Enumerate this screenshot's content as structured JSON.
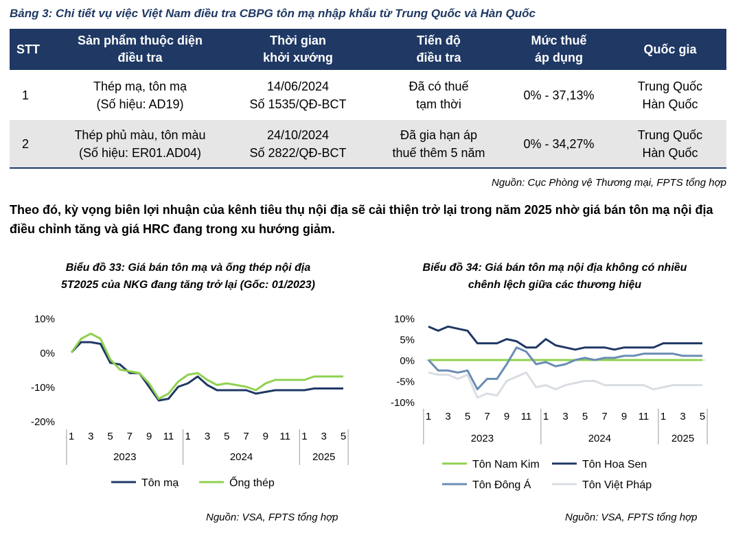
{
  "table": {
    "caption": "Bảng 3: Chi tiết vụ việc Việt Nam điều tra CBPG tôn mạ nhập khẩu từ Trung Quốc và Hàn Quốc",
    "headers": [
      {
        "line1": "STT",
        "line2": ""
      },
      {
        "line1": "Sản phẩm thuộc diện",
        "line2": "điều tra"
      },
      {
        "line1": "Thời gian",
        "line2": "khởi xướng"
      },
      {
        "line1": "Tiến độ",
        "line2": "điều tra"
      },
      {
        "line1": "Mức thuế",
        "line2": "áp dụng"
      },
      {
        "line1": "Quốc gia",
        "line2": ""
      }
    ],
    "rows": [
      {
        "stt": "1",
        "product_1": "Thép mạ, tôn mạ",
        "product_2": "(Số hiệu: AD19)",
        "date_1": "14/06/2024",
        "date_2": "Số 1535/QĐ-BCT",
        "progress_1": "Đã có thuế",
        "progress_2": "tạm thời",
        "tax": "0% - 37,13%",
        "country_1": "Trung Quốc",
        "country_2": "Hàn Quốc"
      },
      {
        "stt": "2",
        "product_1": "Thép phủ màu, tôn màu",
        "product_2": "(Số hiệu: ER01.AD04)",
        "date_1": "24/10/2024",
        "date_2": "Số 2822/QĐ-BCT",
        "progress_1": "Đã gia hạn áp",
        "progress_2": "thuế thêm 5 năm",
        "tax": "0% - 34,27%",
        "country_1": "Trung Quốc",
        "country_2": "Hàn Quốc"
      }
    ],
    "source": "Nguồn: Cục Phòng vệ Thương mại, FPTS tổng hợp"
  },
  "paragraph": "Theo đó, kỳ vọng biên lợi nhuận của kênh tiêu thụ nội địa sẽ cải thiện trở lại trong năm 2025 nhờ giá bán tôn mạ nội địa điều chỉnh tăng và giá HRC đang trong xu hướng giảm.",
  "chart_left_labels": {
    "title_line1": "Biểu đồ 33: Giá bán tôn mạ và ống thép nội địa",
    "title_line2": "5T2025 của NKG đang tăng trở lại (Gốc: 01/2023)",
    "source": "Nguồn: VSA, FPTS tổng hợp"
  },
  "chart_right_labels": {
    "title_line1": "Biểu đồ 34: Giá bán tôn mạ nội địa không có nhiều",
    "title_line2": "chênh lệch giữa các thương hiệu",
    "source": "Nguồn: VSA, FPTS tổng hợp"
  },
  "chart_data": [
    {
      "type": "line",
      "title": "Biểu đồ 33: Giá bán tôn mạ và ống thép nội địa 5T2025 của NKG đang tăng trở lại (Gốc: 01/2023)",
      "x": [
        1,
        2,
        3,
        4,
        5,
        6,
        7,
        8,
        9,
        10,
        11,
        12,
        13,
        14,
        15,
        16,
        17,
        18,
        19,
        20,
        21,
        22,
        23,
        24,
        25,
        26,
        27,
        28,
        29
      ],
      "x_tick_labels": [
        "1",
        "3",
        "5",
        "7",
        "9",
        "11",
        "1",
        "3",
        "5",
        "7",
        "9",
        "11",
        "1",
        "3",
        "5"
      ],
      "x_group_labels": [
        "2023",
        "2024",
        "2025"
      ],
      "y_tick_labels": [
        "10%",
        "0%",
        "-10%",
        "-20%"
      ],
      "ylim": [
        -20,
        10
      ],
      "series": [
        {
          "name": "Tôn mạ",
          "color": "#1f3864",
          "values": [
            0,
            3,
            3,
            2.5,
            -3,
            -3.5,
            -6,
            -6,
            -10,
            -14,
            -13.5,
            -10,
            -9,
            -7,
            -9.5,
            -11,
            -11,
            -11,
            -11,
            -12,
            -11.5,
            -11,
            -11,
            -11,
            -11,
            -10.5,
            -10.5,
            -10.5,
            -10.5
          ]
        },
        {
          "name": "Ống thép",
          "color": "#8fd14f",
          "values": [
            0,
            4,
            5.5,
            4,
            -2,
            -5,
            -5.5,
            -6,
            -9,
            -13.5,
            -12,
            -8.5,
            -6.5,
            -6,
            -8,
            -9.5,
            -9,
            -9.5,
            -10,
            -11,
            -9,
            -8,
            -8,
            -8,
            -8,
            -7,
            -7,
            -7,
            -7
          ]
        }
      ]
    },
    {
      "type": "line",
      "title": "Biểu đồ 34: Giá bán tôn mạ nội địa không có nhiều chênh lệch giữa các thương hiệu",
      "x": [
        1,
        2,
        3,
        4,
        5,
        6,
        7,
        8,
        9,
        10,
        11,
        12,
        13,
        14,
        15,
        16,
        17,
        18,
        19,
        20,
        21,
        22,
        23,
        24,
        25,
        26,
        27,
        28,
        29
      ],
      "x_tick_labels": [
        "1",
        "3",
        "5",
        "7",
        "9",
        "11",
        "1",
        "3",
        "5",
        "7",
        "9",
        "11",
        "1",
        "3",
        "5"
      ],
      "x_group_labels": [
        "2023",
        "2024",
        "2025"
      ],
      "y_tick_labels": [
        "10%",
        "5%",
        "0%",
        "-5%",
        "-10%"
      ],
      "ylim": [
        -10,
        10
      ],
      "series": [
        {
          "name": "Tôn Nam Kim",
          "color": "#8fd14f",
          "values": [
            0,
            0,
            0,
            0,
            0,
            0,
            0,
            0,
            0,
            0,
            0,
            0,
            0,
            0,
            0,
            0,
            0,
            0,
            0,
            0,
            0,
            0,
            0,
            0,
            0,
            0,
            0,
            0,
            0
          ]
        },
        {
          "name": "Tôn Hoa Sen",
          "color": "#1f3864",
          "values": [
            8,
            7,
            8,
            7.5,
            7,
            4,
            4,
            4,
            5,
            4.5,
            3,
            3,
            5,
            3.5,
            3,
            2.5,
            3,
            3,
            3,
            2.5,
            3,
            3,
            3,
            3,
            4,
            4,
            4,
            4,
            4
          ]
        },
        {
          "name": "Tôn Đông Á",
          "color": "#6a8cb3",
          "values": [
            0,
            -2.5,
            -2.5,
            -3,
            -2.5,
            -7,
            -4.5,
            -4.5,
            -1,
            3,
            2,
            -1,
            -0.5,
            -1.5,
            -1,
            0,
            0.5,
            0,
            0.5,
            0.5,
            1,
            1,
            1.5,
            1.5,
            1.5,
            1.5,
            1,
            1,
            1
          ]
        },
        {
          "name": "Tôn Việt Pháp",
          "color": "#d9dde3",
          "values": [
            -3,
            -3.5,
            -3.5,
            -4.5,
            -3.5,
            -9,
            -8,
            -8.5,
            -5,
            -4,
            -3,
            -6.5,
            -6,
            -7,
            -6,
            -5.5,
            -5,
            -5,
            -6,
            -6,
            -6,
            -6,
            -6,
            -7,
            -6.5,
            -6,
            -6,
            -6,
            -6
          ]
        }
      ]
    }
  ]
}
